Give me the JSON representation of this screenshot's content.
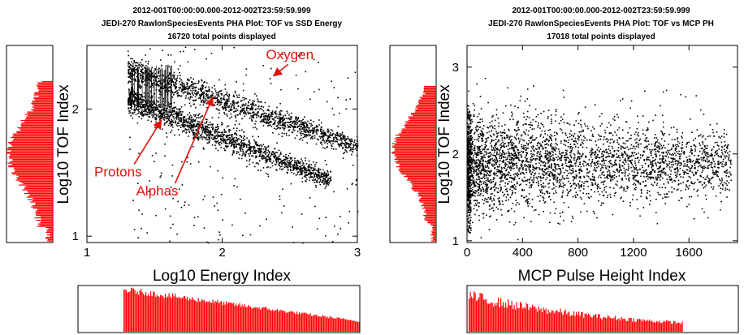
{
  "colors": {
    "hist": "#ff0000",
    "annotation": "#e0120c",
    "points": "#000000"
  },
  "chart_data": [
    {
      "type": "scatter",
      "title_lines": [
        "2012-001T00:00:00.000-2012-002T23:59:59.999",
        "JEDI-270 RawlonSpeciesEvents PHA Plot: TOF vs SSD Energy",
        "16720 total points displayed"
      ],
      "xlabel": "Log10 Energy Index",
      "ylabel": "Log10 TOF Index",
      "xlim": [
        1,
        3
      ],
      "ylim": [
        0.95,
        2.5
      ],
      "xticks": [
        "1",
        "2",
        "3"
      ],
      "yticks": [
        "1",
        "2"
      ],
      "xtick_values": [
        1,
        2,
        3
      ],
      "ytick_values": [
        1,
        2
      ],
      "annotations": [
        {
          "text": "Oxygen",
          "x": 2.5,
          "y": 2.39,
          "arrow_to": [
            2.38,
            2.26
          ]
        },
        {
          "text": "Protons",
          "x": 1.23,
          "y": 1.47,
          "arrow_to": [
            1.55,
            1.91
          ]
        },
        {
          "text": "Alphas",
          "x": 1.52,
          "y": 1.32,
          "arrow_to": [
            1.93,
            2.09
          ]
        }
      ],
      "series": [
        {
          "band": "upper",
          "x_range": [
            1.3,
            3.0
          ],
          "y_start": 2.31,
          "y_end": 1.71
        },
        {
          "band": "lower",
          "x_range": [
            1.3,
            2.8
          ],
          "y_start": 2.08,
          "y_end": 1.44
        }
      ],
      "side_histogram": "y-distribution (red bars)",
      "bottom_histogram": "x-distribution (red bars)"
    },
    {
      "type": "scatter",
      "title_lines": [
        "2012-001T00:00:00.000-2012-002T23:59:59.999",
        "JEDI-270 RawlonSpeciesEvents PHA Plot: TOF vs MCP PH",
        "17018 total points displayed"
      ],
      "xlabel": "MCP Pulse Height Index",
      "ylabel": "Log10 TOF Index",
      "xlim": [
        0,
        1950
      ],
      "ylim": [
        0.98,
        3.25
      ],
      "xticks": [
        "0",
        "400",
        "800",
        "1200",
        "1600"
      ],
      "yticks": [
        "1",
        "2",
        "3"
      ],
      "xtick_values": [
        0,
        400,
        800,
        1200,
        1600
      ],
      "ytick_values": [
        1,
        2,
        3
      ],
      "series": [
        {
          "band": "cloud",
          "x_range": [
            0,
            1900
          ],
          "y_center": 1.9,
          "y_spread": 0.28
        }
      ],
      "side_histogram": "y-distribution (red bars)",
      "bottom_histogram": "x-distribution (red bars)"
    }
  ]
}
